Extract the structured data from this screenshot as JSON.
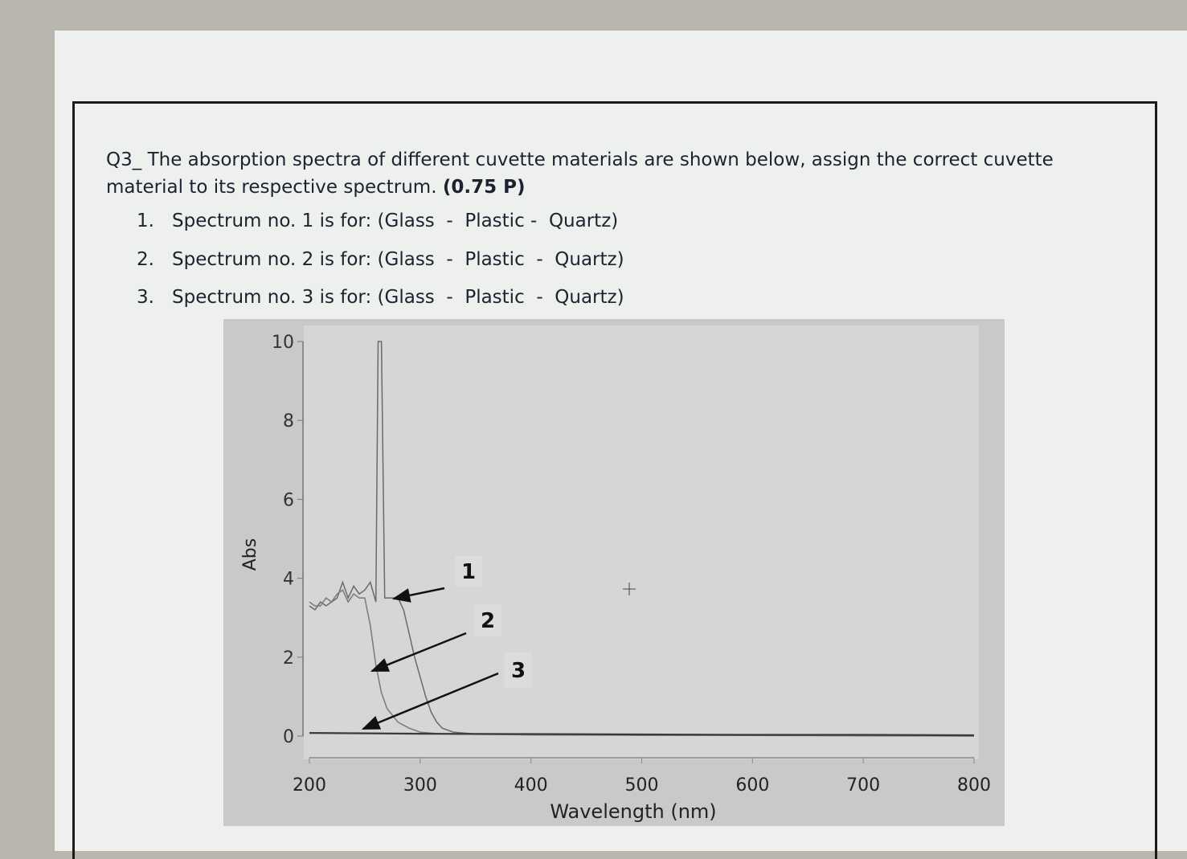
{
  "question": {
    "label": "Q3_",
    "text": "The absorption spectra of different cuvette materials are shown below, assign the correct cuvette material to its respective spectrum.",
    "points": "(0.75 P)"
  },
  "items": [
    {
      "number": "1.",
      "text": "Spectrum no. 1 is for: (Glass  -  Plastic -  Quartz)"
    },
    {
      "number": "2.",
      "text": "Spectrum no. 2 is for: (Glass  -  Plastic  -  Quartz)"
    },
    {
      "number": "3.",
      "text": "Spectrum no. 3 is for: (Glass  -  Plastic  -  Quartz)"
    }
  ],
  "chart_data": {
    "type": "line",
    "xlabel": "Wavelength (nm)",
    "ylabel": "Abs",
    "xlim": [
      200,
      800
    ],
    "ylim": [
      0,
      10
    ],
    "xticks": [
      200,
      300,
      400,
      500,
      600,
      700,
      800
    ],
    "yticks": [
      0,
      2,
      4,
      6,
      8,
      10
    ],
    "series": [
      {
        "name": "1",
        "color": "#6a6a6a",
        "x": [
          200,
          205,
          210,
          215,
          220,
          225,
          230,
          235,
          240,
          245,
          250,
          255,
          260,
          262,
          265,
          268,
          275,
          280,
          285,
          290,
          295,
          300,
          305,
          310,
          315,
          320,
          330,
          350,
          400,
          500,
          600,
          700,
          800
        ],
        "values": [
          3.3,
          3.2,
          3.4,
          3.3,
          3.4,
          3.5,
          3.9,
          3.5,
          3.8,
          3.6,
          3.7,
          3.9,
          3.4,
          10,
          10,
          3.5,
          3.5,
          3.5,
          3.2,
          2.6,
          2.0,
          1.5,
          1.0,
          0.6,
          0.35,
          0.2,
          0.1,
          0.05,
          0.03,
          0.02,
          0.02,
          0.01,
          0.0
        ]
      },
      {
        "name": "2",
        "color": "#7a7a7a",
        "x": [
          200,
          205,
          210,
          215,
          220,
          225,
          230,
          235,
          240,
          245,
          250,
          255,
          260,
          265,
          270,
          280,
          290,
          300,
          320,
          400,
          800
        ],
        "values": [
          3.4,
          3.3,
          3.3,
          3.5,
          3.4,
          3.6,
          3.7,
          3.4,
          3.6,
          3.5,
          3.5,
          2.8,
          1.8,
          1.1,
          0.7,
          0.35,
          0.2,
          0.1,
          0.05,
          0.03,
          0.0
        ]
      },
      {
        "name": "3",
        "color": "#3a3a3a",
        "x": [
          200,
          300,
          400,
          500,
          600,
          700,
          800
        ],
        "values": [
          0.08,
          0.06,
          0.05,
          0.04,
          0.03,
          0.03,
          0.02
        ]
      }
    ]
  }
}
